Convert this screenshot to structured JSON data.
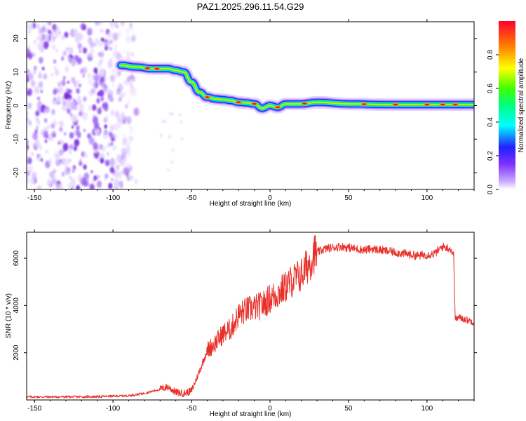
{
  "title": "PAZ1.2025.296.11.54.G29",
  "top_panel": {
    "xlabel": "Height of straight line (km)",
    "ylabel": "Frequency (Hz)",
    "xticks": [
      "-150",
      "-100",
      "-50",
      "0",
      "50",
      "100"
    ],
    "yticks": [
      "-20",
      "-10",
      "0",
      "10",
      "20"
    ]
  },
  "bottom_panel": {
    "xlabel": "Height of straight line (km)",
    "ylabel": "SNR (10 * v/v)",
    "xticks": [
      "-150",
      "-100",
      "-50",
      "0",
      "50",
      "100"
    ],
    "yticks": [
      "2000",
      "4000",
      "6000"
    ]
  },
  "colorbar": {
    "label": "Normalized spectral amplitude",
    "ticks": [
      "0.0",
      "0.2",
      "0.4",
      "0.6",
      "0.8"
    ]
  },
  "colors": {
    "snr_line": "#e8302a",
    "noise": "#7a2ae0"
  },
  "chart_data": [
    {
      "type": "heatmap",
      "xlabel": "Height of straight line (km)",
      "ylabel": "Frequency (Hz)",
      "xlim": [
        -155,
        130
      ],
      "ylim": [
        -25,
        25
      ],
      "colorbar_range": [
        0,
        1
      ],
      "colormap": "rainbow (purple-blue-cyan-green-yellow-red)",
      "ridge": {
        "x": [
          -95,
          -85,
          -75,
          -65,
          -60,
          -55,
          -50,
          -45,
          -40,
          -35,
          -30,
          -25,
          -20,
          -15,
          -10,
          -5,
          0,
          5,
          10,
          20,
          30,
          50,
          75,
          100,
          130
        ],
        "y": [
          12,
          11.5,
          11,
          11,
          10.5,
          10,
          7,
          4,
          2.5,
          2,
          1.8,
          1.5,
          1,
          0.8,
          0.5,
          -0.8,
          0,
          -0.5,
          0.5,
          0.5,
          1,
          0.5,
          0.3,
          0.3,
          0.3
        ]
      },
      "noise_region_x": [
        -155,
        -85
      ]
    },
    {
      "type": "line",
      "xlabel": "Height of straight line (km)",
      "ylabel": "SNR (10 * v/v)",
      "xlim": [
        -155,
        130
      ],
      "ylim": [
        0,
        7100
      ],
      "series": [
        {
          "x": [
            -155,
            -130,
            -110,
            -90,
            -80,
            -70,
            -65,
            -60,
            -55,
            -50,
            -45,
            -40,
            -35,
            -30,
            -25,
            -20,
            -15,
            -10,
            -5,
            0,
            5,
            10,
            15,
            20,
            25,
            28,
            30,
            35,
            40,
            45,
            50,
            55,
            60,
            65,
            70,
            75,
            80,
            85,
            90,
            95,
            100,
            105,
            110,
            115,
            117,
            118,
            120,
            125,
            130
          ],
          "y": [
            130,
            130,
            140,
            180,
            280,
            450,
            560,
            320,
            280,
            380,
            1200,
            2100,
            2400,
            2800,
            3000,
            3600,
            3800,
            3900,
            4000,
            4300,
            4500,
            4800,
            5100,
            5300,
            5800,
            6200,
            6250,
            6400,
            6450,
            6500,
            6450,
            6400,
            6350,
            6400,
            6350,
            6300,
            6250,
            6200,
            6150,
            6100,
            6150,
            6200,
            6500,
            6400,
            6100,
            3400,
            3500,
            3400,
            3300
          ]
        }
      ]
    }
  ]
}
